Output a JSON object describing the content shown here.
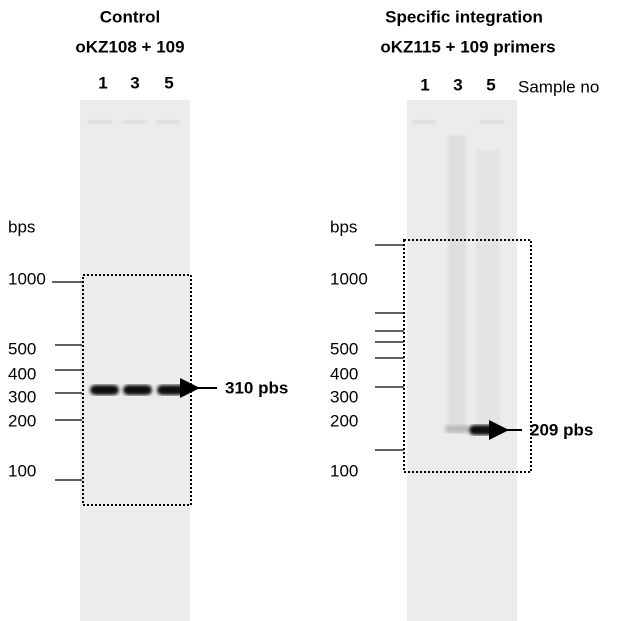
{
  "panels": [
    {
      "title": "Control",
      "subtitle": "oKZ108 + 109",
      "lanes": [
        "1",
        "3",
        "5"
      ],
      "axis_label": "bps",
      "ladder": [
        "1000",
        "500",
        "400",
        "300",
        "200",
        "100"
      ],
      "band_label": "310 pbs"
    },
    {
      "title": "Specific integration",
      "subtitle": "oKZ115 + 109  primers",
      "lanes": [
        "1",
        "3",
        "5"
      ],
      "axis_label": "bps",
      "ladder": [
        "1000",
        "500",
        "400",
        "300",
        "200",
        "100"
      ],
      "band_label": "209 pbs",
      "lane_header": "Sample no"
    }
  ]
}
